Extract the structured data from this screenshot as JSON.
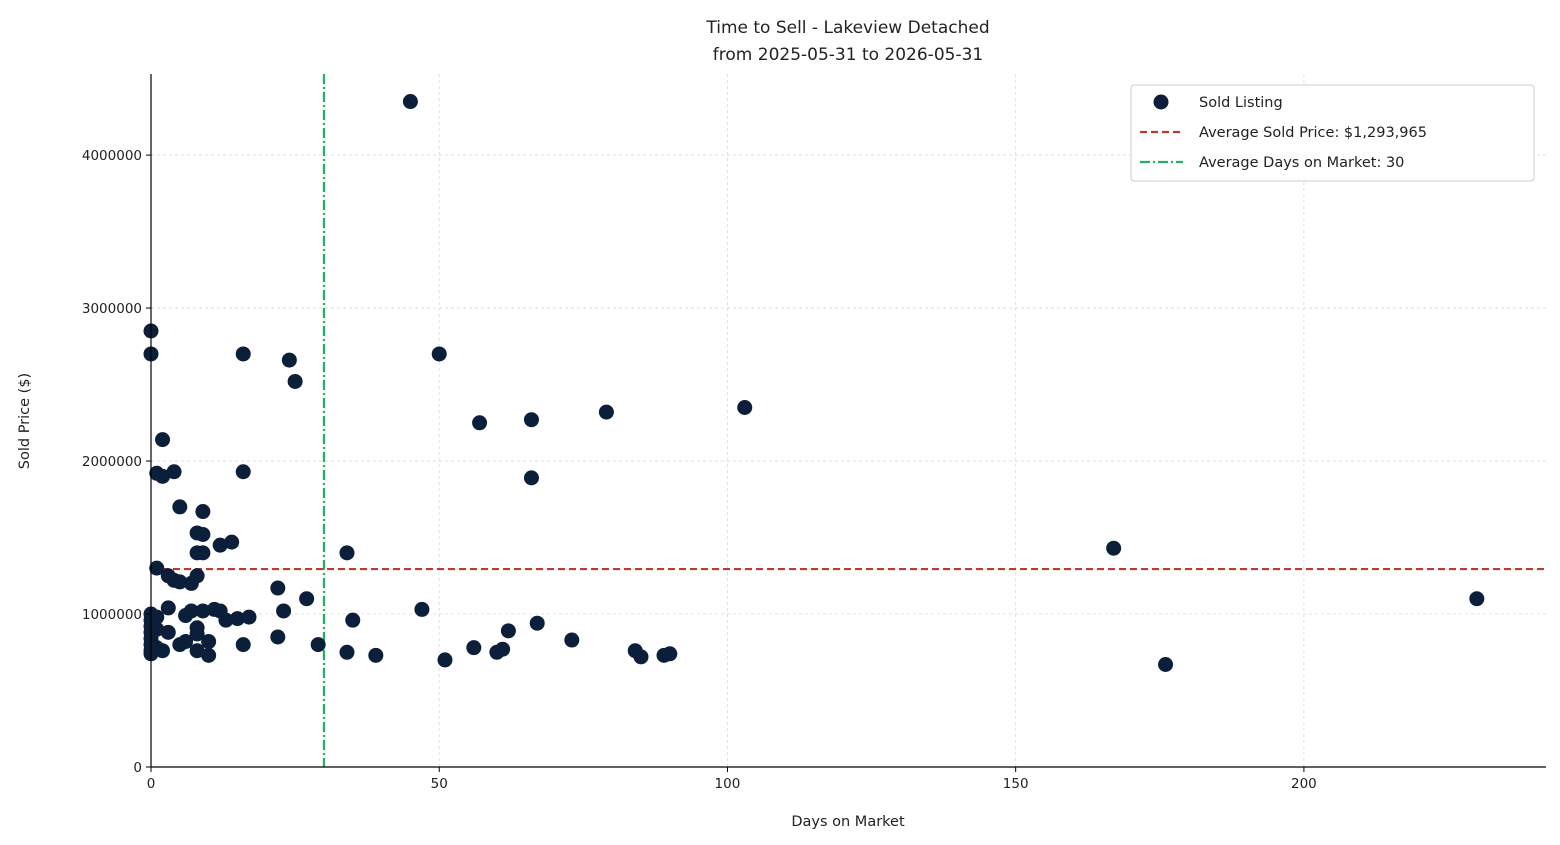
{
  "chart_data": {
    "type": "scatter",
    "title": "Time to Sell - Lakeview Detached",
    "subtitle": "from 2025-05-31 to 2026-05-31",
    "xlabel": "Days on Market",
    "ylabel": "Sold Price ($)",
    "xlim": [
      0,
      242
    ],
    "ylim": [
      0,
      4530000
    ],
    "xticks": [
      0,
      50,
      100,
      150,
      200
    ],
    "xtick_labels": [
      "0",
      "50",
      "100",
      "150",
      "200"
    ],
    "yticks": [
      0,
      1000000,
      2000000,
      3000000,
      4000000
    ],
    "ytick_labels": [
      "0",
      "1000000",
      "2000000",
      "3000000",
      "4000000"
    ],
    "grid": true,
    "legend_position": "top-right",
    "colors": {
      "points": "#0b1f3a",
      "avg_price_line": "#c0392b",
      "avg_days_line": "#27ae60",
      "grid": "#d9d9d9"
    },
    "series": [
      {
        "name": "Sold Listing",
        "points": [
          [
            0,
            2850000
          ],
          [
            0,
            2700000
          ],
          [
            0,
            1000000
          ],
          [
            0,
            960000
          ],
          [
            0,
            920000
          ],
          [
            0,
            880000
          ],
          [
            0,
            840000
          ],
          [
            0,
            800000
          ],
          [
            0,
            760000
          ],
          [
            0,
            740000
          ],
          [
            1,
            1920000
          ],
          [
            1,
            1300000
          ],
          [
            1,
            980000
          ],
          [
            1,
            900000
          ],
          [
            1,
            780000
          ],
          [
            2,
            2140000
          ],
          [
            2,
            1900000
          ],
          [
            2,
            760000
          ],
          [
            3,
            1250000
          ],
          [
            3,
            1040000
          ],
          [
            3,
            880000
          ],
          [
            4,
            1930000
          ],
          [
            4,
            1220000
          ],
          [
            5,
            1700000
          ],
          [
            5,
            1210000
          ],
          [
            5,
            800000
          ],
          [
            6,
            990000
          ],
          [
            6,
            820000
          ],
          [
            7,
            1200000
          ],
          [
            7,
            1020000
          ],
          [
            8,
            1530000
          ],
          [
            8,
            1400000
          ],
          [
            8,
            1250000
          ],
          [
            8,
            910000
          ],
          [
            8,
            870000
          ],
          [
            8,
            760000
          ],
          [
            9,
            1670000
          ],
          [
            9,
            1520000
          ],
          [
            9,
            1400000
          ],
          [
            9,
            1020000
          ],
          [
            10,
            820000
          ],
          [
            10,
            730000
          ],
          [
            11,
            1030000
          ],
          [
            12,
            1450000
          ],
          [
            12,
            1020000
          ],
          [
            13,
            960000
          ],
          [
            14,
            1470000
          ],
          [
            15,
            970000
          ],
          [
            16,
            2700000
          ],
          [
            16,
            1930000
          ],
          [
            16,
            800000
          ],
          [
            17,
            980000
          ],
          [
            22,
            1170000
          ],
          [
            22,
            850000
          ],
          [
            23,
            1020000
          ],
          [
            24,
            2660000
          ],
          [
            25,
            2520000
          ],
          [
            27,
            1100000
          ],
          [
            29,
            800000
          ],
          [
            34,
            1400000
          ],
          [
            34,
            750000
          ],
          [
            35,
            960000
          ],
          [
            39,
            730000
          ],
          [
            45,
            4350000
          ],
          [
            47,
            1030000
          ],
          [
            50,
            2700000
          ],
          [
            51,
            700000
          ],
          [
            56,
            780000
          ],
          [
            57,
            2250000
          ],
          [
            60,
            750000
          ],
          [
            61,
            770000
          ],
          [
            62,
            890000
          ],
          [
            66,
            2270000
          ],
          [
            66,
            1890000
          ],
          [
            67,
            940000
          ],
          [
            73,
            830000
          ],
          [
            79,
            2320000
          ],
          [
            84,
            760000
          ],
          [
            85,
            720000
          ],
          [
            89,
            730000
          ],
          [
            90,
            740000
          ],
          [
            103,
            2350000
          ],
          [
            167,
            1430000
          ],
          [
            176,
            670000
          ],
          [
            230,
            1100000
          ]
        ]
      }
    ],
    "reference_lines": [
      {
        "orientation": "horizontal",
        "value": 1293965,
        "style": "dashed",
        "label": "Average Sold Price: $1,293,965"
      },
      {
        "orientation": "vertical",
        "value": 30,
        "style": "dashdot",
        "label": "Average Days on Market: 30"
      }
    ]
  }
}
